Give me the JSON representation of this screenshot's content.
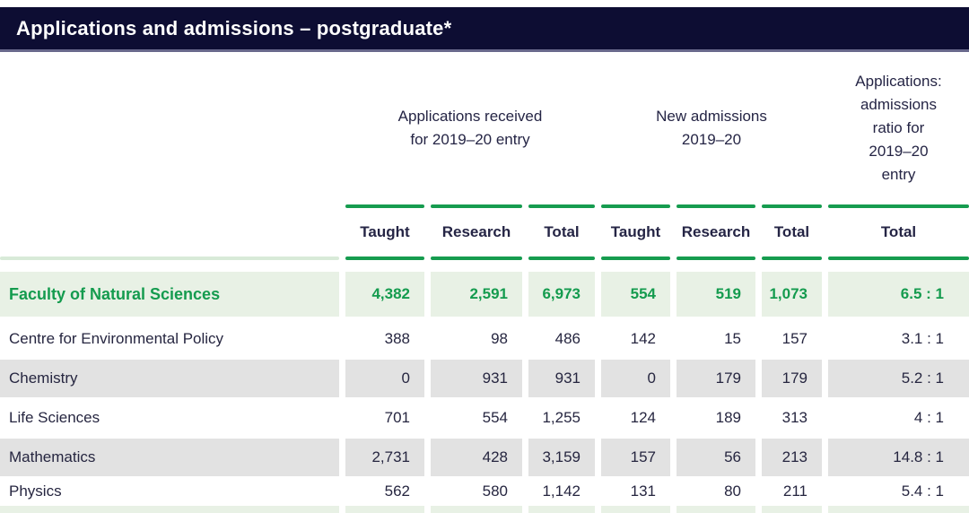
{
  "title_bar": {
    "title": "Applications and admissions – postgraduate*"
  },
  "column_groups": [
    {
      "label": "Applications received\nfor 2019–20 entry"
    },
    {
      "label": "New admissions\n2019–20"
    },
    {
      "label": "Applications:\nadmissions\nratio for\n2019–20\nentry"
    }
  ],
  "sub_headers": {
    "apps_taught": "Taught",
    "apps_research": "Research",
    "apps_total": "Total",
    "adm_taught": "Taught",
    "adm_research": "Research",
    "adm_total": "Total",
    "ratio_total": "Total"
  },
  "rows": [
    {
      "label": "Faculty of Natural Sciences",
      "values": [
        "4,382",
        "2,591",
        "6,973",
        "554",
        "519",
        "1,073",
        "6.5 : 1"
      ]
    },
    {
      "label": "Centre for Environmental Policy",
      "values": [
        "388",
        "98",
        "486",
        "142",
        "15",
        "157",
        "3.1 : 1"
      ]
    },
    {
      "label": "Chemistry",
      "values": [
        "0",
        "931",
        "931",
        "0",
        "179",
        "179",
        "5.2 : 1"
      ]
    },
    {
      "label": "Life Sciences",
      "values": [
        "701",
        "554",
        "1,255",
        "124",
        "189",
        "313",
        "4 : 1"
      ]
    },
    {
      "label": "Mathematics",
      "values": [
        "2,731",
        "428",
        "3,159",
        "157",
        "56",
        "213",
        "14.8 : 1"
      ]
    },
    {
      "label": "Physics",
      "values": [
        "562",
        "580",
        "1,142",
        "131",
        "80",
        "211",
        "5.4 : 1"
      ]
    }
  ],
  "colors": {
    "header_bg": "#0d0d33",
    "accent_green": "#149b4e",
    "rule_green": "#169c4f",
    "highlight_bg": "#e8f1e5",
    "stripe_bg": "#e2e2e2",
    "text_navy": "#252545"
  }
}
